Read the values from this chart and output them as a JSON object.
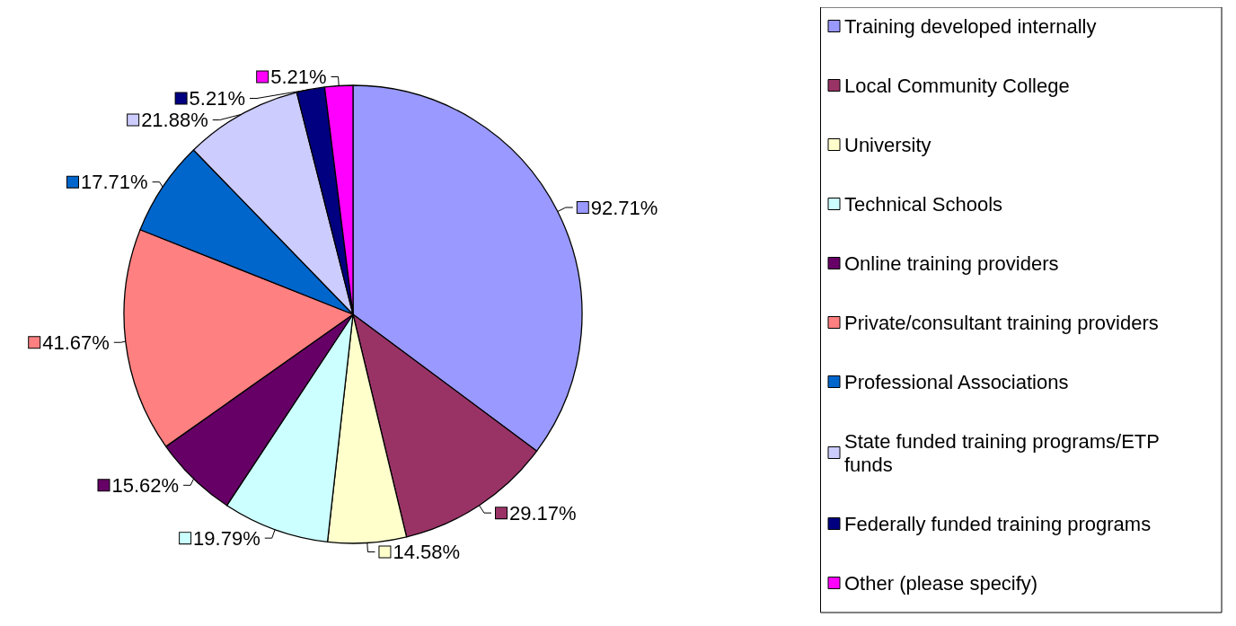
{
  "chart_data": {
    "type": "pie",
    "categories": [
      "Training developed internally",
      "Local Community College",
      "University",
      "Technical Schools",
      "Online training providers",
      "Private/consultant training providers",
      "Professional Associations",
      "State funded training programs/ETP funds",
      "Federally funded training programs",
      "Other (please specify)"
    ],
    "values": [
      92.71,
      29.17,
      14.58,
      19.79,
      15.62,
      41.67,
      17.71,
      21.88,
      5.21,
      5.21
    ],
    "value_labels": [
      "92.71%",
      "29.17%",
      "14.58%",
      "19.79%",
      "15.62%",
      "41.67%",
      "17.71%",
      "21.88%",
      "5.21%",
      "5.21%"
    ],
    "colors": [
      "#9999ff",
      "#993366",
      "#ffffcc",
      "#ccffff",
      "#660066",
      "#ff8080",
      "#0066cc",
      "#ccccff",
      "#000080",
      "#ff00ff"
    ],
    "legend": "right"
  }
}
